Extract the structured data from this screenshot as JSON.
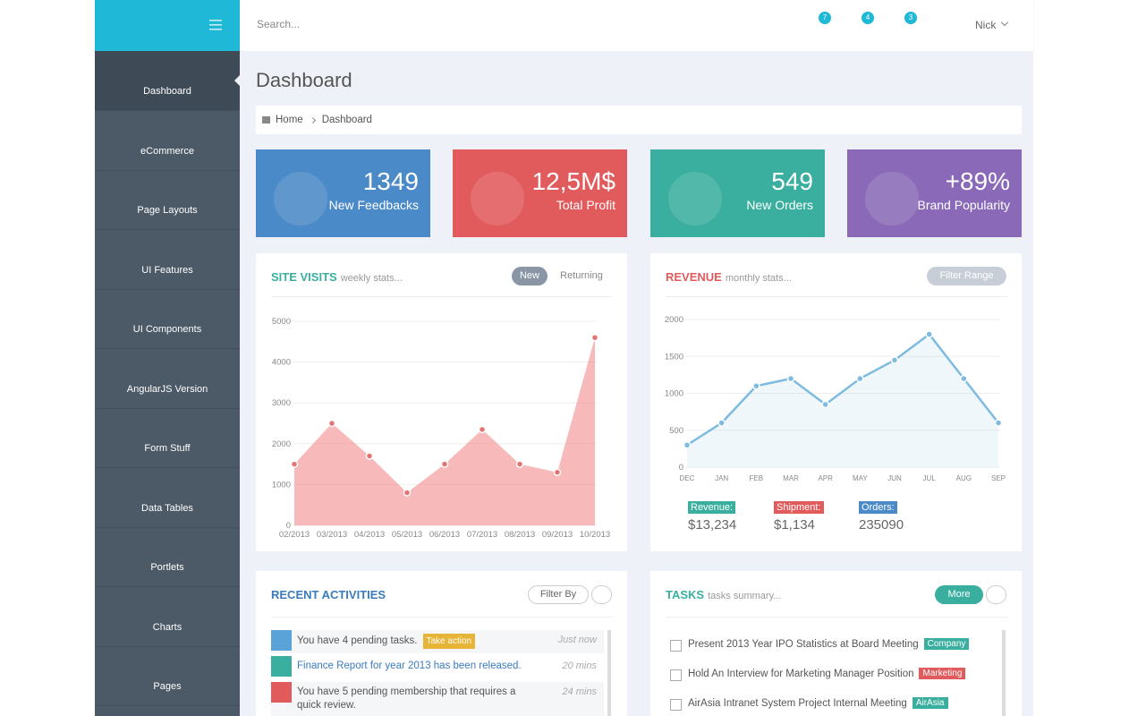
{
  "header": {
    "search_placeholder": "Search...",
    "badges": [
      7,
      4,
      3
    ],
    "user": "Nick"
  },
  "sidebar": {
    "items": [
      "Dashboard",
      "eCommerce",
      "Page Layouts",
      "UI Features",
      "UI Components",
      "AngularJS Version",
      "Form Stuff",
      "Data Tables",
      "Portlets",
      "Charts",
      "Pages"
    ]
  },
  "page": {
    "title": "Dashboard",
    "breadcrumb": [
      "Home",
      "Dashboard"
    ]
  },
  "stats": [
    {
      "value": "1349",
      "label": "New Feedbacks",
      "color": "#4b8ac8"
    },
    {
      "value": "12,5M$",
      "label": "Total Profit",
      "color": "#e15b5d"
    },
    {
      "value": "549",
      "label": "New Orders",
      "color": "#3aaf9f"
    },
    {
      "value": "+89%",
      "label": "Brand Popularity",
      "color": "#8a6ab8"
    }
  ],
  "site_visits": {
    "title": "SITE VISITS",
    "subtitle": "weekly stats...",
    "tabs": [
      "New",
      "Returning"
    ],
    "chart_data": {
      "type": "area",
      "categories": [
        "02/2013",
        "03/2013",
        "04/2013",
        "05/2013",
        "06/2013",
        "07/2013",
        "08/2013",
        "09/2013",
        "10/2013"
      ],
      "values": [
        1500,
        2500,
        1700,
        800,
        1500,
        2350,
        1500,
        1300,
        4600
      ],
      "color": "#f08080",
      "ylim": [
        0,
        5000
      ],
      "yticks": [
        0,
        1000,
        2000,
        3000,
        4000,
        5000
      ],
      "grid": true
    }
  },
  "revenue": {
    "title": "REVENUE",
    "subtitle": "monthly stats...",
    "button": "Filter Range",
    "chart_data": {
      "type": "area",
      "categories": [
        "DEC",
        "JAN",
        "FEB",
        "MAR",
        "APR",
        "MAY",
        "JUN",
        "JUL",
        "AUG",
        "SEP"
      ],
      "values": [
        300,
        600,
        1100,
        1200,
        850,
        1200,
        1450,
        1800,
        1200,
        600
      ],
      "color": "#7dbbe0",
      "ylim": [
        0,
        2000
      ],
      "yticks": [
        0,
        500,
        1000,
        1500,
        2000
      ],
      "grid": true
    },
    "summary": [
      {
        "label": "Revenue:",
        "value": "$13,234",
        "color": "#3aaf9f"
      },
      {
        "label": "Shipment:",
        "value": "$1,134",
        "color": "#e15b5d"
      },
      {
        "label": "Orders:",
        "value": "235090",
        "color": "#4b8ac8"
      }
    ]
  },
  "activities": {
    "title": "RECENT ACTIVITIES",
    "button": "Filter By",
    "items": [
      {
        "text": "You have 4 pending tasks.",
        "tag": "Take action",
        "time": "Just now",
        "color": "#5aa3d8"
      },
      {
        "text": "Finance Report for year 2013 has been released.",
        "time": "20 mins",
        "color": "#3aaf9f"
      },
      {
        "text": "You have 5 pending membership that requires a quick review.",
        "time": "24 mins",
        "color": "#e15b5d"
      }
    ]
  },
  "tasks": {
    "title": "TASKS",
    "subtitle": "tasks summary...",
    "button": "More",
    "items": [
      {
        "text": "Present 2013 Year IPO Statistics at Board Meeting",
        "tag": "Company",
        "tag_color": "#3aaf9f"
      },
      {
        "text": "Hold An Interview for Marketing Manager Position",
        "tag": "Marketing",
        "tag_color": "#e15b5d"
      },
      {
        "text": "AirAsia Intranet System Project Internal Meeting",
        "tag": "AirAsia",
        "tag_color": "#3aaf9f"
      }
    ]
  }
}
